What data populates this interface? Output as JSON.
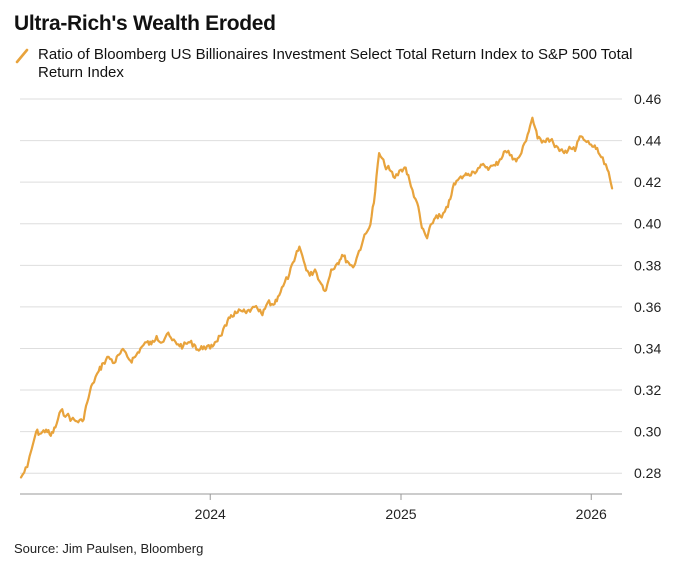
{
  "title": "Ultra-Rich's Wealth Eroded",
  "source": "Source: Jim Paulsen, Bloomberg",
  "colors": {
    "line": "#e8a33c",
    "grid": "#dedede",
    "axis": "#999999"
  },
  "chart_data": {
    "type": "line",
    "title": "Ultra-Rich's Wealth Eroded",
    "xlabel": "",
    "ylabel": "",
    "grid": true,
    "legend_position": "top-left",
    "legend": [
      "Ratio of Bloomberg US Billionaires Investment Select Total Return Index to S&P 500 Total Return Index"
    ],
    "x_ticks": [
      "2024",
      "2025",
      "2026"
    ],
    "y_ticks": [
      "0.28",
      "0.30",
      "0.32",
      "0.34",
      "0.36",
      "0.38",
      "0.40",
      "0.42",
      "0.44",
      "0.46"
    ],
    "ylim": [
      0.27,
      0.46
    ],
    "xlim": [
      "2023-01-01",
      "2026-03-01"
    ],
    "series": [
      {
        "name": "Ratio of Bloomberg US Billionaires Investment Select Total Return Index to S&P 500 Total Return Index",
        "x": [
          "2023-01-03",
          "2023-01-15",
          "2023-02-01",
          "2023-02-10",
          "2023-02-20",
          "2023-03-01",
          "2023-03-10",
          "2023-03-20",
          "2023-04-01",
          "2023-04-10",
          "2023-04-20",
          "2023-05-01",
          "2023-05-10",
          "2023-05-20",
          "2023-06-01",
          "2023-06-10",
          "2023-06-20",
          "2023-07-01",
          "2023-07-10",
          "2023-07-20",
          "2023-08-01",
          "2023-08-10",
          "2023-08-20",
          "2023-09-01",
          "2023-09-10",
          "2023-09-20",
          "2023-10-01",
          "2023-10-10",
          "2023-10-20",
          "2023-11-01",
          "2023-11-10",
          "2023-11-20",
          "2023-12-01",
          "2023-12-10",
          "2023-12-20",
          "2024-01-01",
          "2024-01-10",
          "2024-01-20",
          "2024-02-01",
          "2024-02-10",
          "2024-02-20",
          "2024-03-01",
          "2024-03-10",
          "2024-03-20",
          "2024-04-01",
          "2024-04-10",
          "2024-04-20",
          "2024-05-01",
          "2024-05-10",
          "2024-05-20",
          "2024-06-01",
          "2024-06-10",
          "2024-06-20",
          "2024-07-01",
          "2024-07-10",
          "2024-07-20",
          "2024-08-01",
          "2024-08-10",
          "2024-08-20",
          "2024-09-01",
          "2024-09-10",
          "2024-09-20",
          "2024-10-01",
          "2024-10-10",
          "2024-10-20",
          "2024-11-01",
          "2024-11-10",
          "2024-11-20",
          "2024-12-01",
          "2024-12-10",
          "2024-12-20",
          "2025-01-01",
          "2025-01-10",
          "2025-01-20",
          "2025-02-01",
          "2025-02-10",
          "2025-02-20",
          "2025-03-01",
          "2025-03-10",
          "2025-03-20",
          "2025-04-01",
          "2025-04-10",
          "2025-04-20",
          "2025-05-01",
          "2025-05-10",
          "2025-05-20",
          "2025-06-01",
          "2025-06-10",
          "2025-06-20",
          "2025-07-01",
          "2025-07-10",
          "2025-07-20",
          "2025-08-01",
          "2025-08-10",
          "2025-08-20",
          "2025-09-01",
          "2025-09-10",
          "2025-09-20",
          "2025-10-01",
          "2025-10-10",
          "2025-10-20",
          "2025-11-01",
          "2025-11-10",
          "2025-11-20",
          "2025-12-01",
          "2025-12-10",
          "2025-12-20",
          "2026-01-01",
          "2026-01-10",
          "2026-01-20",
          "2026-02-01",
          "2026-02-10"
        ],
        "y": [
          0.278,
          0.283,
          0.3,
          0.299,
          0.301,
          0.298,
          0.302,
          0.31,
          0.308,
          0.306,
          0.305,
          0.305,
          0.314,
          0.323,
          0.329,
          0.333,
          0.336,
          0.333,
          0.337,
          0.339,
          0.334,
          0.336,
          0.34,
          0.343,
          0.342,
          0.346,
          0.343,
          0.347,
          0.344,
          0.342,
          0.341,
          0.343,
          0.342,
          0.339,
          0.341,
          0.34,
          0.343,
          0.346,
          0.351,
          0.356,
          0.357,
          0.358,
          0.357,
          0.359,
          0.359,
          0.356,
          0.362,
          0.361,
          0.365,
          0.37,
          0.376,
          0.382,
          0.389,
          0.38,
          0.375,
          0.378,
          0.371,
          0.368,
          0.378,
          0.381,
          0.385,
          0.382,
          0.379,
          0.385,
          0.392,
          0.398,
          0.41,
          0.434,
          0.428,
          0.426,
          0.422,
          0.426,
          0.427,
          0.418,
          0.41,
          0.398,
          0.393,
          0.4,
          0.404,
          0.403,
          0.408,
          0.417,
          0.421,
          0.423,
          0.424,
          0.425,
          0.427,
          0.428,
          0.427,
          0.428,
          0.431,
          0.435,
          0.433,
          0.43,
          0.434,
          0.443,
          0.451,
          0.441,
          0.44,
          0.441,
          0.439,
          0.435,
          0.434,
          0.437,
          0.435,
          0.442,
          0.44,
          0.438,
          0.436,
          0.432,
          0.426,
          0.417
        ]
      }
    ]
  }
}
